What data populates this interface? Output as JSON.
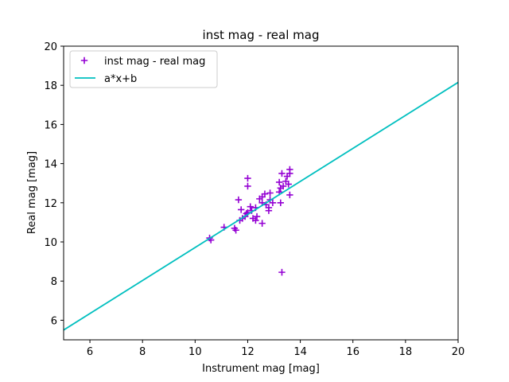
{
  "chart_data": {
    "type": "scatter",
    "title": "inst mag - real mag",
    "xlabel": "Instrument mag [mag]",
    "ylabel": "Real mag [mag]",
    "xlim": [
      5,
      20
    ],
    "ylim": [
      5,
      20
    ],
    "xticks": [
      6,
      8,
      10,
      12,
      14,
      16,
      18,
      20
    ],
    "yticks": [
      6,
      8,
      10,
      12,
      14,
      16,
      18,
      20
    ],
    "grid": false,
    "legend_position": "top-left",
    "series": [
      {
        "name": "inst mag - real mag",
        "kind": "scatter",
        "marker": "plus",
        "color": "#9400d3",
        "points": [
          [
            10.55,
            10.2
          ],
          [
            10.6,
            10.1
          ],
          [
            11.1,
            10.75
          ],
          [
            11.5,
            10.7
          ],
          [
            11.55,
            10.6
          ],
          [
            11.65,
            12.15
          ],
          [
            11.7,
            11.1
          ],
          [
            11.75,
            11.65
          ],
          [
            11.8,
            11.2
          ],
          [
            11.9,
            11.3
          ],
          [
            11.95,
            11.45
          ],
          [
            12.0,
            11.5
          ],
          [
            12.0,
            13.25
          ],
          [
            12.0,
            12.85
          ],
          [
            12.1,
            11.8
          ],
          [
            12.15,
            11.6
          ],
          [
            12.2,
            11.2
          ],
          [
            12.3,
            11.1
          ],
          [
            12.3,
            11.75
          ],
          [
            12.35,
            11.3
          ],
          [
            12.45,
            12.2
          ],
          [
            12.55,
            12.0
          ],
          [
            12.55,
            12.3
          ],
          [
            12.55,
            10.95
          ],
          [
            12.65,
            12.45
          ],
          [
            12.7,
            11.9
          ],
          [
            12.8,
            11.6
          ],
          [
            12.8,
            11.75
          ],
          [
            12.85,
            12.5
          ],
          [
            12.85,
            12.15
          ],
          [
            12.95,
            12.0
          ],
          [
            13.2,
            12.55
          ],
          [
            13.2,
            13.05
          ],
          [
            13.25,
            12.75
          ],
          [
            13.25,
            12.0
          ],
          [
            13.3,
            13.5
          ],
          [
            13.35,
            12.85
          ],
          [
            13.45,
            13.1
          ],
          [
            13.5,
            13.35
          ],
          [
            13.55,
            12.95
          ],
          [
            13.6,
            13.5
          ],
          [
            13.6,
            13.7
          ],
          [
            13.6,
            12.4
          ],
          [
            13.3,
            8.45
          ]
        ]
      },
      {
        "name": "a*x+b",
        "kind": "line",
        "color": "#00bfbf",
        "points": [
          [
            5,
            5.5
          ],
          [
            20,
            18.15
          ]
        ]
      }
    ]
  }
}
